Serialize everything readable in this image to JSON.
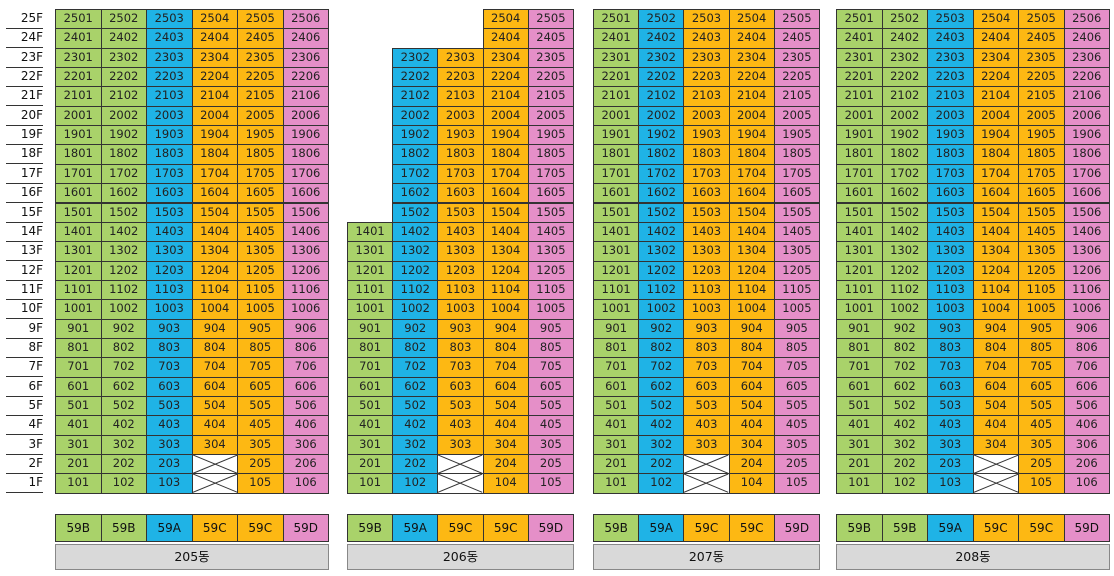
{
  "colors": {
    "59A": "#1fb3e6",
    "59B": "#a9d26a",
    "59C": "#fdb813",
    "59D": "#e58fc8"
  },
  "floors": [
    "25F",
    "24F",
    "23F",
    "22F",
    "21F",
    "20F",
    "19F",
    "18F",
    "17F",
    "16F",
    "15F",
    "14F",
    "13F",
    "12F",
    "11F",
    "10F",
    "9F",
    "8F",
    "7F",
    "6F",
    "5F",
    "4F",
    "3F",
    "2F",
    "1F"
  ],
  "buildings": [
    {
      "name": "205동",
      "lines": [
        {
          "line": 1,
          "type": "59B",
          "from": 1,
          "to": 25
        },
        {
          "line": 2,
          "type": "59B",
          "from": 1,
          "to": 25
        },
        {
          "line": 3,
          "type": "59A",
          "from": 1,
          "to": 25
        },
        {
          "line": 4,
          "type": "59C",
          "from": 3,
          "to": 25
        },
        {
          "line": 5,
          "type": "59C",
          "from": 1,
          "to": 25
        },
        {
          "line": 6,
          "type": "59D",
          "from": 1,
          "to": 25
        }
      ],
      "legend": [
        "59B",
        "59B",
        "59A",
        "59C",
        "59C",
        "59D"
      ]
    },
    {
      "name": "206동",
      "lines": [
        {
          "line": 1,
          "type": "59B",
          "from": 1,
          "to": 14
        },
        {
          "line": 2,
          "type": "59A",
          "from": 1,
          "to": 23
        },
        {
          "line": 3,
          "type": "59C",
          "from": 3,
          "to": 23
        },
        {
          "line": 4,
          "type": "59C",
          "from": 1,
          "to": 25
        },
        {
          "line": 5,
          "type": "59D",
          "from": 1,
          "to": 25
        }
      ],
      "legend": [
        "59B",
        "59A",
        "59C",
        "59C",
        "59D"
      ]
    },
    {
      "name": "207동",
      "lines": [
        {
          "line": 1,
          "type": "59B",
          "from": 1,
          "to": 25
        },
        {
          "line": 2,
          "type": "59A",
          "from": 1,
          "to": 25
        },
        {
          "line": 3,
          "type": "59C",
          "from": 3,
          "to": 25
        },
        {
          "line": 4,
          "type": "59C",
          "from": 1,
          "to": 25
        },
        {
          "line": 5,
          "type": "59D",
          "from": 1,
          "to": 25
        }
      ],
      "legend": [
        "59B",
        "59A",
        "59C",
        "59C",
        "59D"
      ]
    },
    {
      "name": "208동",
      "lines": [
        {
          "line": 1,
          "type": "59B",
          "from": 1,
          "to": 25
        },
        {
          "line": 2,
          "type": "59B",
          "from": 1,
          "to": 25
        },
        {
          "line": 3,
          "type": "59A",
          "from": 1,
          "to": 25
        },
        {
          "line": 4,
          "type": "59C",
          "from": 3,
          "to": 25
        },
        {
          "line": 5,
          "type": "59C",
          "from": 1,
          "to": 25
        },
        {
          "line": 6,
          "type": "59D",
          "from": 1,
          "to": 25
        }
      ],
      "legend": [
        "59B",
        "59B",
        "59A",
        "59C",
        "59C",
        "59D"
      ]
    }
  ]
}
